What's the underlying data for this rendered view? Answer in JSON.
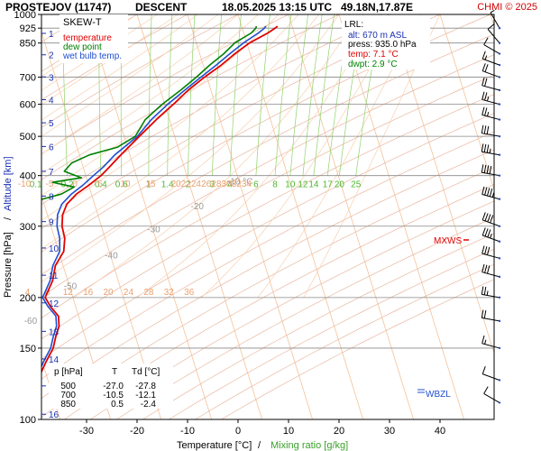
{
  "header": {
    "station": "PROSTEJOV (11747)",
    "mode": "DESCENT",
    "datetime": "18.05.2025 13:15 UTC",
    "coords": "49.18N,17.87E",
    "copyright": "CHMI © 2025"
  },
  "legend": {
    "title": "SKEW-T",
    "items": [
      {
        "label": "temperature",
        "color": "#e00000"
      },
      {
        "label": "dew point",
        "color": "#008000"
      },
      {
        "label": "wet bulb temp.",
        "color": "#1f4fd0"
      }
    ]
  },
  "lrl": {
    "title": "LRL:",
    "alt": "alt: 670 m ASL",
    "press": "press: 935.0 hPa",
    "temp": "temp: 7.1 °C",
    "dwpt": "dwpt: 2.9 °C"
  },
  "table": {
    "headers": [
      "p [hPa]",
      "T",
      "Td [°C]"
    ],
    "rows": [
      [
        "500",
        "-27.0",
        "-27.8"
      ],
      [
        "700",
        "-10.5",
        "-12.1"
      ],
      [
        "850",
        "0.5",
        "-2.4"
      ]
    ]
  },
  "markers": {
    "mxws": "MXWS",
    "wbzl": "WBZL"
  },
  "colors": {
    "temperature": "#e00000",
    "dewpoint": "#008000",
    "wetbulb": "#1f4fd0",
    "isotherm": "#f3c29a",
    "dry_adiabat": "#e9b6a0",
    "moist_adiabat": "#f7d0b0",
    "mixing_ratio": "#8fd36a",
    "isobar": "#888888"
  },
  "chart_data": {
    "type": "line",
    "title": "SKEW-T",
    "xlabel": "Temperature [°C]",
    "xlabel2": "Mixing ratio [g/kg]",
    "ylabel": "Pressure [hPa]",
    "ylabel2": "Altitude [km]",
    "xlim": [
      -35,
      45
    ],
    "ylim": [
      1000,
      100
    ],
    "y_scale": "log",
    "x_ticks": [
      -30,
      -20,
      -10,
      0,
      10,
      20,
      30,
      40
    ],
    "pressure_ticks": [
      100,
      150,
      200,
      300,
      400,
      500,
      600,
      700,
      850,
      925,
      1000
    ],
    "altitude_ticks": [
      {
        "km": 1,
        "p": 898
      },
      {
        "km": 2,
        "p": 795
      },
      {
        "km": 3,
        "p": 701
      },
      {
        "km": 4,
        "p": 616
      },
      {
        "km": 5,
        "p": 540
      },
      {
        "km": 6,
        "p": 472
      },
      {
        "km": 7,
        "p": 410
      },
      {
        "km": 8,
        "p": 356
      },
      {
        "km": 9,
        "p": 308
      },
      {
        "km": 10,
        "p": 265
      },
      {
        "km": 11,
        "p": 227
      },
      {
        "km": 12,
        "p": 194
      },
      {
        "km": 13,
        "p": 165
      },
      {
        "km": 14,
        "p": 141
      },
      {
        "km": 15,
        "p": 121
      },
      {
        "km": 16,
        "p": 103
      }
    ],
    "isotherm_labels_upper": [
      "-80 °C",
      "-70",
      "-60",
      "-50",
      "-40",
      "-30",
      "-20",
      "-10 °C"
    ],
    "isotherm_labels_upper_t": [
      -80,
      -70,
      -60,
      -50,
      -40,
      -30,
      -20,
      -10
    ],
    "theta_labels_200": [
      4,
      8,
      12,
      16,
      20,
      24,
      28,
      32,
      36
    ],
    "theta_labels_2": [
      "20",
      "22",
      "24",
      "28",
      "30",
      "32",
      "34"
    ],
    "theta_labels_2_t": [
      16,
      18,
      20,
      24,
      26,
      28,
      30
    ],
    "theta_labels_370": [
      "-10",
      "-5",
      "0",
      "5",
      "10",
      "15",
      "20",
      "22",
      "24",
      "26",
      "28",
      "30",
      "32",
      "34"
    ],
    "theta_labels_370_t": [
      -10,
      -5,
      0,
      5,
      10,
      15,
      20,
      22,
      24,
      26,
      28,
      30,
      32,
      34
    ],
    "mixing_ratios": [
      0.1,
      0.2,
      0.4,
      0.6,
      1,
      1.4,
      2,
      3,
      4,
      6,
      8,
      10,
      12,
      14,
      17,
      20,
      25
    ],
    "mixing_labels": [
      "0.1",
      "0.2",
      "0.4",
      "0.6",
      "1",
      "1.4",
      "2",
      "3",
      "4",
      "6",
      "8",
      "10",
      "12",
      "14",
      "17",
      "20",
      "25"
    ],
    "series": [
      {
        "name": "temperature",
        "color": "#e00000",
        "points": [
          [
            935,
            7.1
          ],
          [
            925,
            6.5
          ],
          [
            900,
            4.8
          ],
          [
            850,
            0.5
          ],
          [
            800,
            -3.0
          ],
          [
            750,
            -6.4
          ],
          [
            700,
            -10.5
          ],
          [
            650,
            -14.5
          ],
          [
            600,
            -18.3
          ],
          [
            550,
            -22.6
          ],
          [
            500,
            -27.0
          ],
          [
            450,
            -31.8
          ],
          [
            420,
            -34.8
          ],
          [
            400,
            -37.0
          ],
          [
            380,
            -39.8
          ],
          [
            360,
            -43.0
          ],
          [
            340,
            -45.5
          ],
          [
            320,
            -47.0
          ],
          [
            300,
            -47.8
          ],
          [
            280,
            -48.0
          ],
          [
            260,
            -49.0
          ],
          [
            240,
            -51.5
          ],
          [
            220,
            -53.0
          ],
          [
            200,
            -55.5
          ],
          [
            190,
            -55.0
          ],
          [
            180,
            -54.0
          ],
          [
            170,
            -54.5
          ],
          [
            160,
            -55.8
          ],
          [
            150,
            -57.0
          ],
          [
            140,
            -59.0
          ],
          [
            130,
            -61.0
          ],
          [
            120,
            -63.5
          ],
          [
            110,
            -66.0
          ],
          [
            102,
            -67.0
          ]
        ]
      },
      {
        "name": "dew point",
        "color": "#008000",
        "points": [
          [
            935,
            2.9
          ],
          [
            925,
            2.7
          ],
          [
            900,
            1.5
          ],
          [
            850,
            -2.4
          ],
          [
            800,
            -5.2
          ],
          [
            750,
            -8.7
          ],
          [
            700,
            -12.1
          ],
          [
            650,
            -16.0
          ],
          [
            600,
            -20.5
          ],
          [
            550,
            -24.8
          ],
          [
            500,
            -27.8
          ],
          [
            470,
            -32.0
          ],
          [
            450,
            -38.0
          ],
          [
            430,
            -42.0
          ],
          [
            410,
            -44.0
          ],
          [
            395,
            -41.0
          ],
          [
            385,
            -47.0
          ],
          [
            375,
            -43.0
          ],
          [
            360,
            -46.0
          ],
          [
            345,
            -52.0
          ],
          [
            330,
            -60.0
          ],
          [
            315,
            -64.0
          ],
          [
            300,
            -68.0
          ],
          [
            290,
            -72.0
          ],
          [
            275,
            -72.0
          ],
          [
            260,
            -72.5
          ],
          [
            250,
            -74.0
          ],
          [
            235,
            -77.0
          ],
          [
            220,
            -79.0
          ],
          [
            200,
            -83.0
          ],
          [
            185,
            -86.0
          ],
          [
            170,
            -89.0
          ],
          [
            155,
            -91.0
          ],
          [
            140,
            -92.5
          ],
          [
            125,
            -93.5
          ],
          [
            112,
            -95.0
          ],
          [
            102,
            -96.0
          ]
        ]
      },
      {
        "name": "wet bulb temp.",
        "color": "#1f4fd0",
        "points": [
          [
            935,
            4.8
          ],
          [
            925,
            4.4
          ],
          [
            900,
            2.9
          ],
          [
            850,
            -0.7
          ],
          [
            800,
            -4.0
          ],
          [
            750,
            -7.4
          ],
          [
            700,
            -11.2
          ],
          [
            650,
            -15.2
          ],
          [
            600,
            -19.4
          ],
          [
            550,
            -23.6
          ],
          [
            500,
            -27.4
          ],
          [
            450,
            -33.0
          ],
          [
            420,
            -36.0
          ],
          [
            400,
            -38.5
          ],
          [
            380,
            -41.0
          ],
          [
            360,
            -44.0
          ],
          [
            340,
            -46.5
          ],
          [
            320,
            -48.0
          ],
          [
            300,
            -48.8
          ],
          [
            280,
            -49.0
          ],
          [
            260,
            -49.8
          ],
          [
            240,
            -52.0
          ],
          [
            220,
            -53.5
          ],
          [
            200,
            -56.0
          ],
          [
            190,
            -55.5
          ],
          [
            180,
            -54.5
          ],
          [
            170,
            -55.0
          ],
          [
            160,
            -56.3
          ],
          [
            150,
            -57.5
          ],
          [
            140,
            -59.5
          ],
          [
            130,
            -61.5
          ],
          [
            120,
            -64.0
          ],
          [
            110,
            -66.5
          ],
          [
            102,
            -67.5
          ]
        ]
      }
    ],
    "wind_barbs": [
      {
        "p": 925,
        "dir": 330,
        "spd": 5
      },
      {
        "p": 850,
        "dir": 320,
        "spd": 10
      },
      {
        "p": 800,
        "dir": 300,
        "spd": 10
      },
      {
        "p": 750,
        "dir": 290,
        "spd": 15
      },
      {
        "p": 700,
        "dir": 290,
        "spd": 20
      },
      {
        "p": 650,
        "dir": 285,
        "spd": 20
      },
      {
        "p": 600,
        "dir": 285,
        "spd": 25
      },
      {
        "p": 550,
        "dir": 285,
        "spd": 25
      },
      {
        "p": 500,
        "dir": 280,
        "spd": 30
      },
      {
        "p": 450,
        "dir": 280,
        "spd": 35
      },
      {
        "p": 400,
        "dir": 280,
        "spd": 40
      },
      {
        "p": 350,
        "dir": 285,
        "spd": 45
      },
      {
        "p": 300,
        "dir": 290,
        "spd": 40
      },
      {
        "p": 275,
        "dir": 290,
        "spd": 35
      },
      {
        "p": 250,
        "dir": 285,
        "spd": 30
      },
      {
        "p": 225,
        "dir": 285,
        "spd": 30
      },
      {
        "p": 200,
        "dir": 280,
        "spd": 25
      },
      {
        "p": 175,
        "dir": 280,
        "spd": 20
      },
      {
        "p": 150,
        "dir": 285,
        "spd": 15
      },
      {
        "p": 125,
        "dir": 290,
        "spd": 10
      },
      {
        "p": 110,
        "dir": 300,
        "spd": 10
      }
    ]
  }
}
